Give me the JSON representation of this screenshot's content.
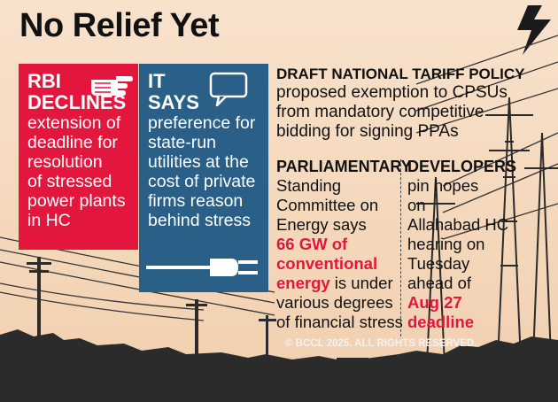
{
  "title": "No Relief Yet",
  "rbi": {
    "head_line1": "RBI",
    "head_line2": "DECLINES",
    "body_lines": [
      "extension of",
      "deadline for",
      "resolution",
      "of stressed",
      "power plants",
      "in HC"
    ],
    "icon": "pointing-hand-icon"
  },
  "it": {
    "head_line1": "IT",
    "head_line2": "SAYS",
    "body_lines": [
      "preference for",
      "state-run",
      "utilities at the",
      "cost of private",
      "firms reason",
      "behind stress"
    ],
    "icon": "speech-bubble-icon",
    "plug_icon": "power-plug-icon"
  },
  "draft": {
    "head": "DRAFT NATIONAL TARIFF POLICY",
    "body_lines": [
      "proposed exemption to CPSUs",
      "from mandatory competitive",
      "bidding for signing PPAs"
    ]
  },
  "parliamentary": {
    "head": "PARLIAMENTARY",
    "line1": "Standing",
    "line2": "Committee on",
    "line3": "Energy says",
    "hl1": "66 GW of",
    "hl2": "conventional",
    "hl3": "energy",
    "line6_rest": " is under",
    "line7": "various degrees",
    "line8": "of financial stress"
  },
  "developers": {
    "head": "DEVELOPERS",
    "line1": "pin hopes",
    "line2": "on",
    "line3": "Allahabad HC",
    "line4": "hearing on",
    "line5": "Tuesday",
    "line6": "ahead of",
    "hl1": "Aug 27",
    "hl2": "deadline"
  },
  "footer": "© BCCL 2025. ALL RIGHTS RESERVED.",
  "colors": {
    "red": "#e3173e",
    "blue": "#2a5f87",
    "bg": "#f6dcc3",
    "silhouette": "#2b2b2b"
  }
}
